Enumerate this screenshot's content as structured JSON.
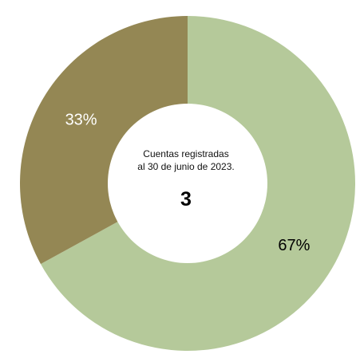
{
  "chart_data": {
    "type": "pie",
    "subtype": "donut",
    "title": "",
    "center_text": {
      "caption_line_1": "Cuentas registradas",
      "caption_line_2": "al 30 de junio de 2023.",
      "value": "3"
    },
    "slices": [
      {
        "label": "67%",
        "value": 67,
        "color": "#b5c99a"
      },
      {
        "label": "33%",
        "value": 33,
        "color": "#948754"
      }
    ],
    "start_angle_degrees": 0,
    "direction": "clockwise",
    "label_colors": [
      "#000000",
      "#ffffff"
    ]
  }
}
